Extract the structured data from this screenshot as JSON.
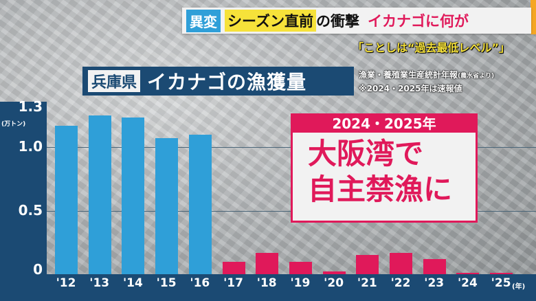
{
  "header": {
    "tag": "異変",
    "highlight": "シーズン直前",
    "mid": "の衝撃",
    "accent_text": "イカナゴに何が",
    "subtitle": "「ことしは“過去最低レベル”」"
  },
  "chart_title": {
    "prefecture": "兵庫県",
    "title": "イカナゴの漁獲量"
  },
  "source": {
    "line1": "漁業・養殖業生産統計年報",
    "line1_note": "(農水省より)",
    "line2": "※2024・2025年は速報値"
  },
  "callout": {
    "header": "2024・2025年",
    "line1": "大阪湾で",
    "line2": "自主禁漁に"
  },
  "colors": {
    "navy": "#1b4a73",
    "blue_bar": "#2f9fd8",
    "red_bar": "#e0195a",
    "yellow": "#f6e23a"
  },
  "chart_data": {
    "type": "bar",
    "ylabel": "(万トン)",
    "xlabel": "(年)",
    "ylim": [
      0,
      1.3
    ],
    "yticks": [
      "1.3",
      "1.0",
      "0.5",
      "0"
    ],
    "categories": [
      "'12",
      "'13",
      "'14",
      "'15",
      "'16",
      "'17",
      "'18",
      "'19",
      "'20",
      "'21",
      "'22",
      "'23",
      "'24",
      "'25"
    ],
    "values": [
      1.17,
      1.25,
      1.23,
      1.07,
      1.1,
      0.1,
      0.17,
      0.1,
      0.02,
      0.15,
      0.17,
      0.12,
      0.01,
      0.01
    ],
    "bar_colors": [
      "#2f9fd8",
      "#2f9fd8",
      "#2f9fd8",
      "#2f9fd8",
      "#2f9fd8",
      "#e0195a",
      "#e0195a",
      "#e0195a",
      "#e0195a",
      "#e0195a",
      "#e0195a",
      "#e0195a",
      "#e0195a",
      "#e0195a"
    ],
    "grid": true
  }
}
